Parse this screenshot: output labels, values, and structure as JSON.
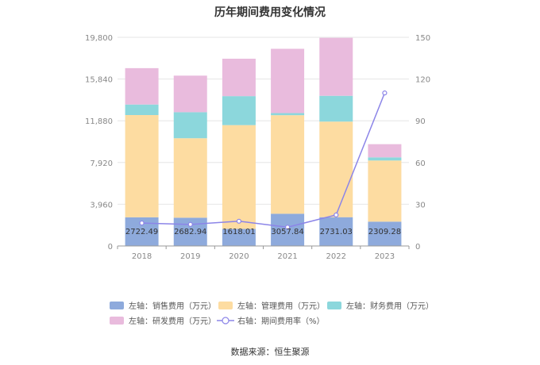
{
  "chart_data": {
    "type": "bar",
    "title": "历年期间费用变化情况",
    "categories": [
      "2018",
      "2019",
      "2020",
      "2021",
      "2022",
      "2023"
    ],
    "stacked": true,
    "left_axis": {
      "min": 0,
      "max": 19800,
      "ticks": [
        "0",
        "3,960",
        "7,920",
        "11,880",
        "15,840",
        "19,800"
      ]
    },
    "right_axis": {
      "min": 0,
      "max": 150,
      "ticks": [
        "0",
        "30",
        "60",
        "90",
        "120",
        "150"
      ]
    },
    "series": [
      {
        "name": "左轴：销售费用（万元）",
        "type": "bar",
        "axis": "left",
        "color": "#8eaadc",
        "values": [
          2722.49,
          2682.94,
          1618.01,
          3057.84,
          2731.03,
          2309.28
        ],
        "labels": [
          "2722.49",
          "2682.94",
          "1618.01",
          "3057.84",
          "2731.03",
          "2309.28"
        ]
      },
      {
        "name": "左轴：管理费用（万元）",
        "type": "bar",
        "axis": "left",
        "color": "#fddca1",
        "values": [
          9700,
          7540,
          9850,
          9350,
          9070,
          5800
        ]
      },
      {
        "name": "左轴：财务费用（万元）",
        "type": "bar",
        "axis": "left",
        "color": "#8cd7dc",
        "values": [
          1000,
          2470,
          2750,
          200,
          2450,
          300
        ]
      },
      {
        "name": "左轴：研发费用（万元）",
        "type": "bar",
        "axis": "left",
        "color": "#e9bbdd",
        "values": [
          3450,
          3470,
          3550,
          6100,
          5500,
          1250
        ]
      },
      {
        "name": "右轴：期间费用率（%）",
        "type": "line",
        "axis": "right",
        "color": "#8c85e8",
        "values": [
          16.5,
          15.5,
          17.8,
          13.5,
          22.3,
          110.0
        ]
      }
    ],
    "grid": true,
    "legend_position": "bottom"
  },
  "source": "数据来源：恒生聚源"
}
